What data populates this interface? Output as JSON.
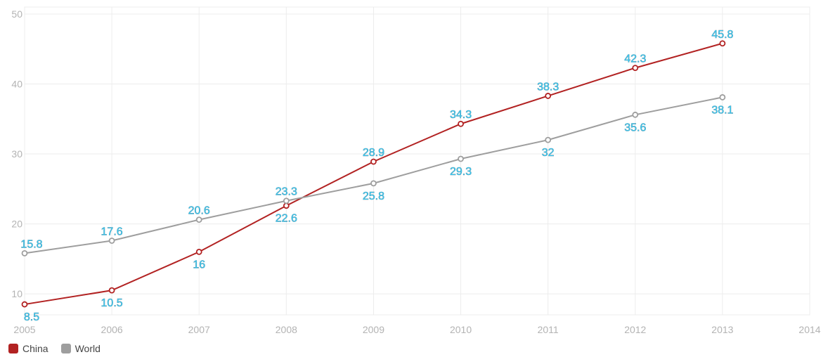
{
  "chart_data": {
    "type": "line",
    "title": "",
    "xlabel": "",
    "ylabel": "",
    "x": [
      2005,
      2006,
      2007,
      2008,
      2009,
      2010,
      2011,
      2012,
      2013
    ],
    "xlim": [
      2005,
      2014
    ],
    "xticks": [
      "2005",
      "2006",
      "2007",
      "2008",
      "2009",
      "2010",
      "2011",
      "2012",
      "2013",
      "2014"
    ],
    "ylim": [
      7,
      51
    ],
    "yticks": [
      "10",
      "20",
      "30",
      "40",
      "50"
    ],
    "grid": true,
    "legend_position": "bottom-left",
    "series": [
      {
        "name": "China",
        "color": "#b22222",
        "values": [
          8.5,
          10.5,
          16,
          22.6,
          28.9,
          34.3,
          38.3,
          42.3,
          45.8
        ],
        "labels": [
          "8.5",
          "10.5",
          "16",
          "22.6",
          "28.9",
          "34.3",
          "38.3",
          "42.3",
          "45.8"
        ],
        "label_pos": [
          "below",
          "below",
          "below",
          "below",
          "above",
          "above",
          "above",
          "above",
          "above"
        ]
      },
      {
        "name": "World",
        "color": "#9e9e9e",
        "values": [
          15.8,
          17.6,
          20.6,
          23.3,
          25.8,
          29.3,
          32,
          35.6,
          38.1
        ],
        "labels": [
          "15.8",
          "17.6",
          "20.6",
          "23.3",
          "25.8",
          "29.3",
          "32",
          "35.6",
          "38.1"
        ],
        "label_pos": [
          "above",
          "above",
          "above",
          "above",
          "below",
          "below",
          "below",
          "below",
          "below"
        ]
      }
    ]
  }
}
